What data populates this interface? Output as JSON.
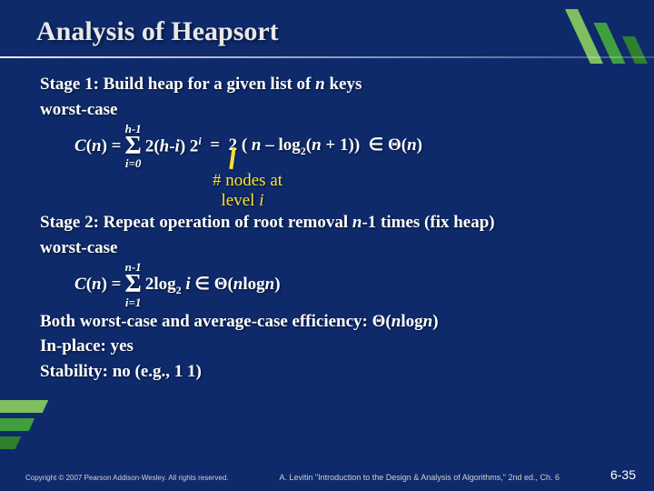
{
  "colors": {
    "background": "#0e2a6b",
    "text": "#ffffff",
    "accent_yellow": "#ffe030",
    "stripe_light": "#7fbf5f",
    "stripe_mid": "#3f9f3f",
    "stripe_dark": "#2f7f2f"
  },
  "title": "Analysis of Heapsort",
  "stage1": {
    "heading": "Stage 1: Build heap for a given list of n keys",
    "worst_label": "worst-case",
    "cn_label": "C(n) =",
    "sum_upper": "h-1",
    "sum_lower": "i=0",
    "sum_body_pre": "2(",
    "sum_body_hi": "h-i",
    "sum_body_post": ") 2",
    "sum_body_exp": "i",
    "eq_rhs_1": "  =  2 ( ",
    "eq_rhs_n": "n",
    "eq_rhs_2": " – log",
    "eq_rhs_logbase": "2",
    "eq_rhs_3": "(",
    "eq_rhs_n2": "n",
    "eq_rhs_4": " + 1))  ",
    "theta_arg": "(n)"
  },
  "note": {
    "line1": "# nodes at",
    "line2": "  level i"
  },
  "stage2": {
    "heading_pre": "Stage 2: Repeat operation of root removal ",
    "heading_n": "n",
    "heading_post": "-1 times (fix heap)",
    "worst_label": "worst-case",
    "cn_label": "C(n) =",
    "sum_upper": "n-1",
    "sum_lower": "i=1",
    "sum_body_pre": "2log",
    "sum_body_base": "2",
    "sum_body_i": " i ",
    "theta_arg_pre": "(",
    "theta_arg_n": "n",
    "theta_arg_mid": "log",
    "theta_arg_n2": "n",
    "theta_arg_post": ")"
  },
  "both_line_pre": "Both worst-case and average-case efficiency: ",
  "both_theta_pre": "(",
  "both_theta_n": "n",
  "both_theta_mid": "log",
  "both_theta_n2": "n",
  "both_theta_post": ")",
  "inplace": "In-place: yes",
  "stability": "Stability: no (e.g., 1  1)",
  "footer": {
    "copyright": "Copyright © 2007 Pearson Addison-Wesley. All rights reserved.",
    "citation": "A. Levitin \"Introduction to the Design & Analysis of Algorithms,\" 2nd ed., Ch. 6",
    "page": "6-35"
  }
}
